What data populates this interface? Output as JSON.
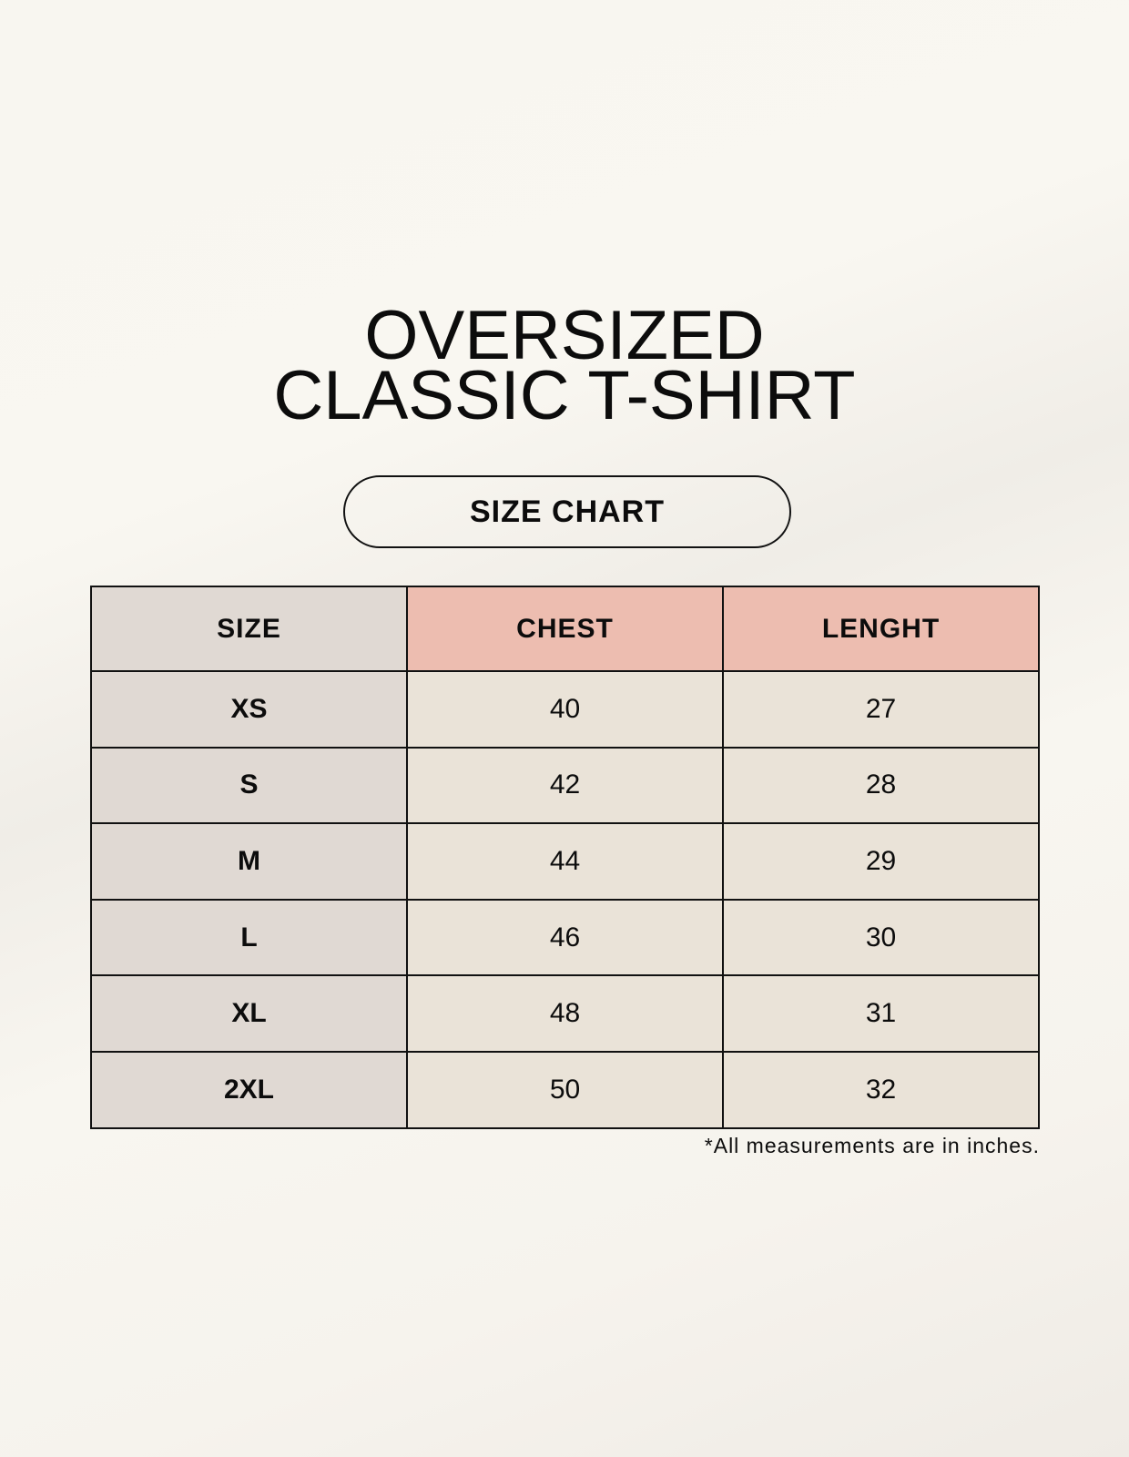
{
  "title": {
    "line1": "OVERSIZED",
    "line2": "CLASSIC T-SHIRT"
  },
  "badge": "SIZE CHART",
  "table": {
    "headers": [
      "SIZE",
      "CHEST",
      "LENGHT"
    ],
    "rows": [
      [
        "XS",
        "40",
        "27"
      ],
      [
        "S",
        "42",
        "28"
      ],
      [
        "M",
        "44",
        "29"
      ],
      [
        "L",
        "46",
        "30"
      ],
      [
        "XL",
        "48",
        "31"
      ],
      [
        "2XL",
        "50",
        "32"
      ]
    ]
  },
  "note": "*All measurements are in inches.",
  "colors": {
    "size_column": "#e0d9d3",
    "header_accent": "#edbdb0",
    "cell": "#eae3d8"
  }
}
